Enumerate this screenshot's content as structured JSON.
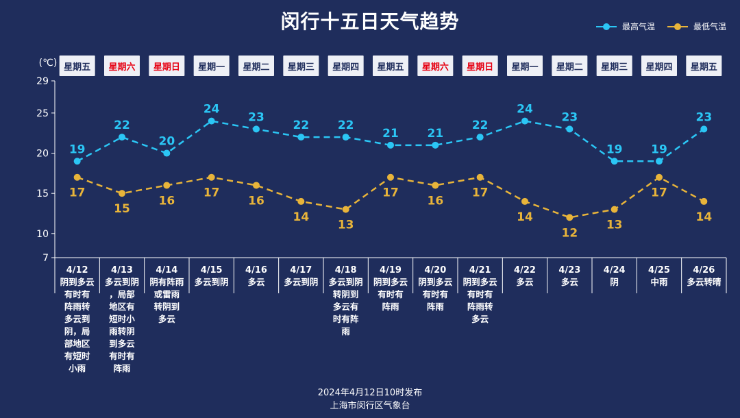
{
  "title": "闵行十五日天气趋势",
  "legend": {
    "high": {
      "label": "最高气温",
      "color": "#2bc6f5"
    },
    "low": {
      "label": "最低气温",
      "color": "#e8b43a"
    }
  },
  "unit_label": "(℃)",
  "weekend_color": "#e60012",
  "footer": {
    "line1": "2024年4月12日10时发布",
    "line2": "上海市闵行区气象台"
  },
  "chart_data": {
    "type": "line",
    "title": "闵行十五日天气趋势",
    "ylabel": "(℃)",
    "ylim": [
      7,
      29
    ],
    "yticks": [
      7,
      10,
      15,
      20,
      25,
      29
    ],
    "legend_position": "top-right",
    "grid": false,
    "categories": [
      "4/12",
      "4/13",
      "4/14",
      "4/15",
      "4/16",
      "4/17",
      "4/18",
      "4/19",
      "4/20",
      "4/21",
      "4/22",
      "4/23",
      "4/24",
      "4/25",
      "4/26"
    ],
    "weekdays": [
      "星期五",
      "星期六",
      "星期日",
      "星期一",
      "星期二",
      "星期三",
      "星期四",
      "星期五",
      "星期六",
      "星期日",
      "星期一",
      "星期二",
      "星期三",
      "星期四",
      "星期五"
    ],
    "weekend": [
      false,
      true,
      true,
      false,
      false,
      false,
      false,
      false,
      true,
      true,
      false,
      false,
      false,
      false,
      false
    ],
    "weather": [
      [
        "阴到多云",
        "有时有",
        "阵雨转",
        "多云到",
        "阴，局",
        "部地区",
        "有短时",
        "小雨"
      ],
      [
        "多云到阴",
        "，局部",
        "地区有",
        "短时小",
        "雨转阴",
        "到多云",
        "有时有",
        "阵雨"
      ],
      [
        "阴有阵雨",
        "或雷雨",
        "转阴到",
        "多云"
      ],
      [
        "多云到阴"
      ],
      [
        "多云"
      ],
      [
        "多云到阴"
      ],
      [
        "多云到阴",
        "转阴到",
        "多云有",
        "时有阵",
        "雨"
      ],
      [
        "阴到多云",
        "有时有",
        "阵雨"
      ],
      [
        "阴到多云",
        "有时有",
        "阵雨"
      ],
      [
        "阴到多云",
        "有时有",
        "阵雨转",
        "多云"
      ],
      [
        "多云"
      ],
      [
        "多云"
      ],
      [
        "阴"
      ],
      [
        "中雨"
      ],
      [
        "多云转晴"
      ]
    ],
    "series": [
      {
        "name": "最高气温",
        "color": "#2bc6f5",
        "values": [
          19,
          22,
          20,
          24,
          23,
          22,
          22,
          21,
          21,
          22,
          24,
          23,
          19,
          19,
          23
        ]
      },
      {
        "name": "最低气温",
        "color": "#e8b43a",
        "values": [
          17,
          15,
          16,
          17,
          16,
          14,
          13,
          17,
          16,
          17,
          14,
          12,
          13,
          17,
          14
        ]
      }
    ]
  }
}
